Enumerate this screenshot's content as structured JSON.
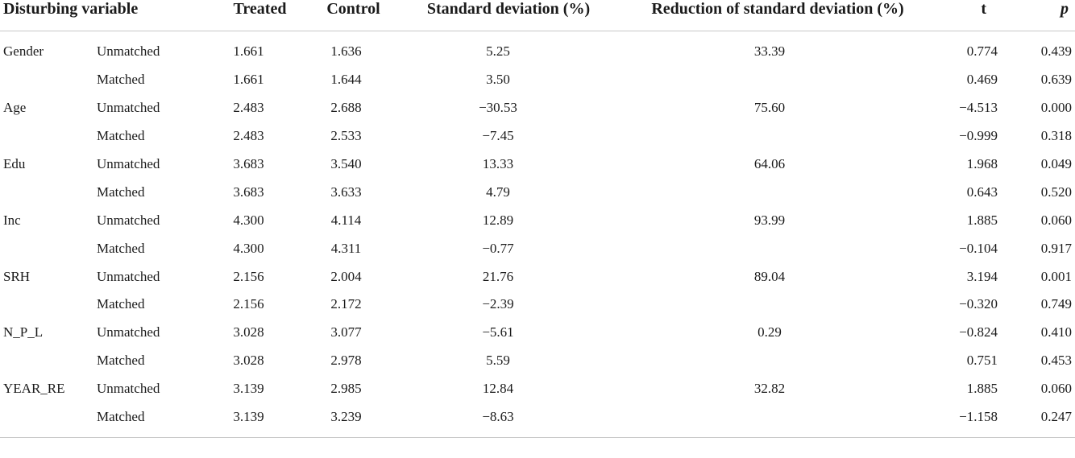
{
  "table": {
    "headers": {
      "variable": "Disturbing variable",
      "state": "",
      "treated": "Treated",
      "control": "Control",
      "sd": "Standard deviation (%)",
      "reduction": "Reduction of standard deviation (%)",
      "t": "t",
      "p": "p"
    },
    "rows": [
      {
        "variable": "Gender",
        "state": "Unmatched",
        "treated": "1.661",
        "control": "1.636",
        "sd": "5.25",
        "reduction": "33.39",
        "t": "0.774",
        "p": "0.439"
      },
      {
        "variable": "",
        "state": "Matched",
        "treated": "1.661",
        "control": "1.644",
        "sd": "3.50",
        "reduction": "",
        "t": "0.469",
        "p": "0.639"
      },
      {
        "variable": "Age",
        "state": "Unmatched",
        "treated": "2.483",
        "control": "2.688",
        "sd": "−30.53",
        "reduction": "75.60",
        "t": "−4.513",
        "p": "0.000"
      },
      {
        "variable": "",
        "state": "Matched",
        "treated": "2.483",
        "control": "2.533",
        "sd": "−7.45",
        "reduction": "",
        "t": "−0.999",
        "p": "0.318"
      },
      {
        "variable": "Edu",
        "state": "Unmatched",
        "treated": "3.683",
        "control": "3.540",
        "sd": "13.33",
        "reduction": "64.06",
        "t": "1.968",
        "p": "0.049"
      },
      {
        "variable": "",
        "state": "Matched",
        "treated": "3.683",
        "control": "3.633",
        "sd": "4.79",
        "reduction": "",
        "t": "0.643",
        "p": "0.520"
      },
      {
        "variable": "Inc",
        "state": "Unmatched",
        "treated": "4.300",
        "control": "4.114",
        "sd": "12.89",
        "reduction": "93.99",
        "t": "1.885",
        "p": "0.060"
      },
      {
        "variable": "",
        "state": "Matched",
        "treated": "4.300",
        "control": "4.311",
        "sd": "−0.77",
        "reduction": "",
        "t": "−0.104",
        "p": "0.917"
      },
      {
        "variable": "SRH",
        "state": "Unmatched",
        "treated": "2.156",
        "control": "2.004",
        "sd": "21.76",
        "reduction": "89.04",
        "t": "3.194",
        "p": "0.001"
      },
      {
        "variable": "",
        "state": "Matched",
        "treated": "2.156",
        "control": "2.172",
        "sd": "−2.39",
        "reduction": "",
        "t": "−0.320",
        "p": "0.749"
      },
      {
        "variable": "N_P_L",
        "state": "Unmatched",
        "treated": "3.028",
        "control": "3.077",
        "sd": "−5.61",
        "reduction": "0.29",
        "t": "−0.824",
        "p": "0.410"
      },
      {
        "variable": "",
        "state": "Matched",
        "treated": "3.028",
        "control": "2.978",
        "sd": "5.59",
        "reduction": "",
        "t": "0.751",
        "p": "0.453"
      },
      {
        "variable": "YEAR_RE",
        "state": "Unmatched",
        "treated": "3.139",
        "control": "2.985",
        "sd": "12.84",
        "reduction": "32.82",
        "t": "1.885",
        "p": "0.060"
      },
      {
        "variable": "",
        "state": "Matched",
        "treated": "3.139",
        "control": "3.239",
        "sd": "−8.63",
        "reduction": "",
        "t": "−1.158",
        "p": "0.247"
      }
    ]
  }
}
